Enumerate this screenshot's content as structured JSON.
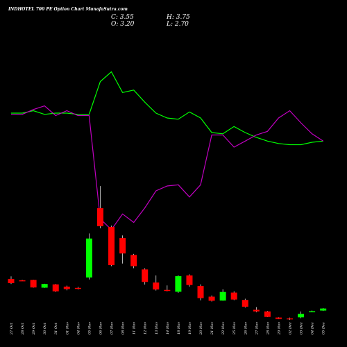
{
  "chart_data": {
    "type": "candlestick",
    "title": "INDHOTEL 700 PE Option Chart MunafaSutra.com",
    "ohlc_readout": {
      "close_label": "C: 3.55",
      "high_label": "H: 3.75",
      "open_label": "O: 3.20",
      "low_label": "L: 2.70"
    },
    "dates": [
      "27 Oct",
      "28 Oct",
      "29 Oct",
      "30 Oct",
      "31 Oct",
      "01 Nov",
      "04 Nov",
      "05 Nov",
      "06 Nov",
      "07 Nov",
      "08 Nov",
      "11 Nov",
      "12 Nov",
      "13 Nov",
      "14 Nov",
      "18 Nov",
      "19 Nov",
      "20 Nov",
      "21 Nov",
      "22 Nov",
      "25 Nov",
      "26 Nov",
      "27 Nov",
      "28 Nov",
      "29 Nov",
      "02 Dec",
      "03 Dec",
      "04 Dec",
      "05 Dec"
    ],
    "candles": [
      {
        "o": 14.2,
        "h": 15.5,
        "l": 11.8,
        "c": 12.2
      },
      {
        "o": 13.6,
        "h": 13.8,
        "l": 13.2,
        "c": 13.5
      },
      {
        "o": 13.8,
        "h": 13.9,
        "l": 10.0,
        "c": 10.1
      },
      {
        "o": 10.0,
        "h": 11.9,
        "l": 9.9,
        "c": 11.8
      },
      {
        "o": 11.6,
        "h": 11.8,
        "l": 7.9,
        "c": 8.2
      },
      {
        "o": 10.5,
        "h": 11.0,
        "l": 8.7,
        "c": 9.3
      },
      {
        "o": 9.9,
        "h": 10.4,
        "l": 9.1,
        "c": 9.4
      },
      {
        "o": 15.0,
        "h": 36.5,
        "l": 14.0,
        "c": 34.0
      },
      {
        "o": 48.8,
        "h": 59.6,
        "l": 39.0,
        "c": 40.0
      },
      {
        "o": 39.7,
        "h": 40.3,
        "l": 20.5,
        "c": 21.0
      },
      {
        "o": 34.2,
        "h": 35.5,
        "l": 21.8,
        "c": 26.7
      },
      {
        "o": 26.0,
        "h": 26.5,
        "l": 19.5,
        "c": 20.5
      },
      {
        "o": 18.9,
        "h": 19.5,
        "l": 11.5,
        "c": 12.8
      },
      {
        "o": 12.5,
        "h": 16.0,
        "l": 8.6,
        "c": 9.1
      },
      {
        "o": 8.9,
        "h": 11.1,
        "l": 8.2,
        "c": 8.6
      },
      {
        "o": 8.0,
        "h": 16.0,
        "l": 7.5,
        "c": 15.6
      },
      {
        "o": 16.0,
        "h": 16.5,
        "l": 10.5,
        "c": 11.3
      },
      {
        "o": 10.8,
        "h": 11.6,
        "l": 3.8,
        "c": 4.9
      },
      {
        "o": 5.6,
        "h": 6.2,
        "l": 3.2,
        "c": 3.6
      },
      {
        "o": 3.7,
        "h": 9.2,
        "l": 3.6,
        "c": 7.9
      },
      {
        "o": 7.6,
        "h": 8.2,
        "l": 3.9,
        "c": 4.2
      },
      {
        "o": 4.0,
        "h": 4.6,
        "l": 0.3,
        "c": 0.7
      },
      {
        "o": -0.8,
        "h": 0.5,
        "l": -2.0,
        "c": -1.6
      },
      {
        "o": -1.6,
        "h": -1.4,
        "l": -4.4,
        "c": -4.3
      },
      {
        "o": -4.6,
        "h": -4.5,
        "l": -5.4,
        "c": -5.3
      },
      {
        "o": -5.0,
        "h": -4.6,
        "l": -5.8,
        "c": -5.4
      },
      {
        "o": -4.5,
        "h": -1.6,
        "l": -4.9,
        "c": -2.8
      },
      {
        "o": -1.6,
        "h": -1.2,
        "l": -1.7,
        "c": -1.5
      },
      {
        "o": -1.2,
        "h": 0.0,
        "l": -1.4,
        "c": -0.2
      }
    ],
    "line_series": [
      {
        "color": "#00ff00",
        "values": [
          52,
          52,
          54,
          51,
          52,
          52,
          51,
          51,
          78,
          86,
          69,
          71,
          61,
          52,
          48,
          47,
          53,
          48,
          36,
          35,
          41,
          36,
          32,
          29,
          27,
          26,
          26,
          28,
          29
        ]
      },
      {
        "color": "#c000c0",
        "values": [
          51,
          51,
          55,
          58,
          50,
          54,
          50,
          50,
          -35,
          -44,
          -31,
          -38,
          -26,
          -12,
          -8,
          -7,
          -17,
          -7,
          34,
          34,
          24,
          29,
          34,
          37,
          48,
          54,
          44,
          35,
          29
        ]
      }
    ]
  }
}
